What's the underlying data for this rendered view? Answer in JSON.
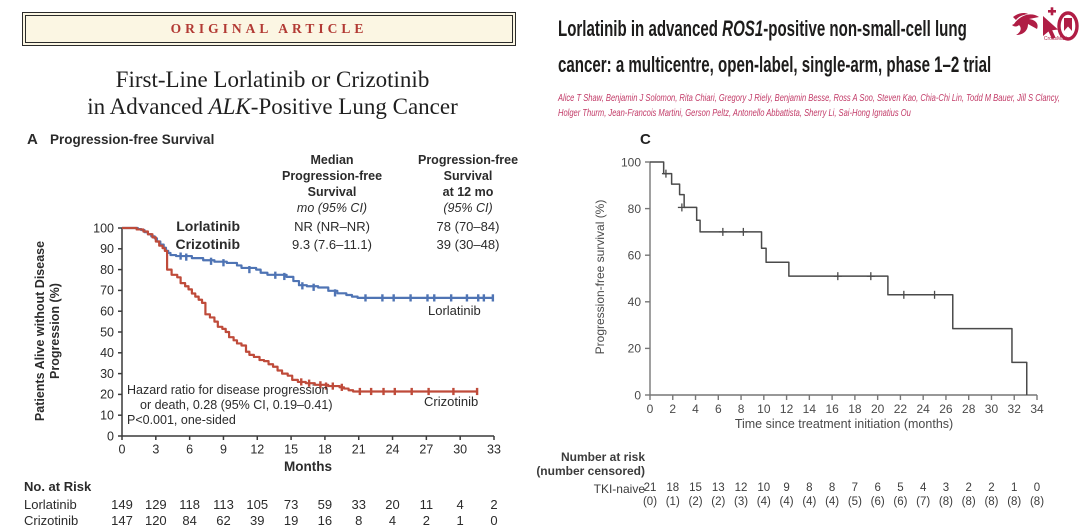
{
  "left_figure": {
    "banner": "ORIGINAL ARTICLE",
    "title": {
      "line1": "First-Line Lorlatinib or Crizotinib",
      "line2_pre": "in Advanced ",
      "line2_italic": "ALK",
      "line2_post": "-Positive Lung Cancer"
    },
    "panel": {
      "label": "A",
      "title": "Progression-free Survival"
    },
    "stats_table": {
      "col1": {
        "h1": "Median",
        "h2": "Progression-free",
        "h3": "Survival",
        "unit": "mo (95% CI)"
      },
      "col2": {
        "h1": "Progression-free",
        "h2": "Survival",
        "h3": "at 12 mo",
        "unit": "(95% CI)"
      },
      "legend": {
        "row1": "Lorlatinib",
        "row2": "Crizotinib"
      },
      "values": {
        "row1_col1": "NR (NR–NR)",
        "row1_col2": "78 (70–84)",
        "row2_col1": "9.3 (7.6–11.1)",
        "row2_col2": "39 (30–48)"
      }
    },
    "ylabel": {
      "line1": "Patients Alive without Disease",
      "line2": "Progression (%)"
    },
    "xlabel": "Months",
    "annotation": {
      "line1": "Hazard ratio for disease progression",
      "line2": "or death, 0.28 (95% CI, 0.19–0.41)",
      "line3": "P<0.001, one-sided"
    },
    "curve_labels": {
      "blue": "Lorlatinib",
      "red": "Crizotinib"
    },
    "risk": {
      "header": "No. at Risk",
      "row1_name": "Lorlatinib",
      "row2_name": "Crizotinib",
      "row1_values": [
        149,
        129,
        118,
        113,
        105,
        73,
        59,
        33,
        20,
        11,
        4,
        2
      ],
      "row2_values": [
        147,
        120,
        84,
        62,
        39,
        19,
        16,
        8,
        4,
        2,
        1,
        0
      ]
    }
  },
  "right_figure": {
    "title": {
      "line1_pre": "Lorlatinib in advanced ",
      "line1_italic": "ROS1",
      "line1_post": "-positive non-small-cell lung",
      "line2": "cancer: a multicentre, open-label, single-arm, phase 1–2 trial"
    },
    "authors_line1": "Alice T Shaw, Benjamin J Solomon, Rita Chiari, Gregory J Riely, Benjamin Besse, Ross A Soo, Steven Kao, Chia-Chi Lin, Todd M Bauer, Jill S Clancy,",
    "authors_line2": "Holger Thurm, Jean-Francois Martini, Gerson Peltz, Antonello Abbattista, Sherry Li, Sai-Hong Ignatius Ou",
    "crossmark_label": "CrossMark",
    "panel_label": "C",
    "ylabel": "Progression-free survival (%)",
    "xlabel": "Time since treatment initiation (months)",
    "risk": {
      "header1": "Number at risk",
      "header2": "(number censored)",
      "row_name": "TKI-naive",
      "at_risk": [
        21,
        18,
        15,
        13,
        12,
        10,
        9,
        8,
        8,
        7,
        6,
        5,
        4,
        3,
        2,
        2,
        1,
        0
      ],
      "censored": [
        "(0)",
        "(1)",
        "(2)",
        "(2)",
        "(3)",
        "(4)",
        "(4)",
        "(4)",
        "(4)",
        "(5)",
        "(6)",
        "(6)",
        "(7)",
        "(8)",
        "(8)",
        "(8)",
        "(8)",
        "(8)"
      ]
    }
  },
  "colors": {
    "lorlatinib_blue": "#4f74b4",
    "crizotinib_red": "#bf4b3a",
    "lancet_curve": "#4a4a4a",
    "lancet_pink": "#c23a67",
    "lancet_crimson": "#b01d45",
    "banner_red": "#b23a34",
    "banner_cream": "#fbf6e3"
  },
  "chart_data": [
    {
      "id": "nejm_pfs",
      "type": "line",
      "subtype": "kaplan-meier",
      "title": "Progression-free Survival",
      "xlabel": "Months",
      "ylabel": "Patients Alive without Disease Progression (%)",
      "xlim": [
        0,
        33
      ],
      "ylim": [
        0,
        100
      ],
      "xticks": [
        0,
        3,
        6,
        9,
        12,
        15,
        18,
        21,
        24,
        27,
        30,
        33
      ],
      "yticks": [
        0,
        10,
        20,
        30,
        40,
        50,
        60,
        70,
        80,
        90,
        100
      ],
      "grid": false,
      "annotations": [
        "Hazard ratio for disease progression or death, 0.28 (95% CI, 0.19–0.41)",
        "P<0.001, one-sided"
      ],
      "series": [
        {
          "name": "Lorlatinib",
          "color": "#4f74b4",
          "median_pfs": "NR (NR–NR)",
          "pfs_12mo": "78 (70–84)",
          "steps": [
            [
              0,
              100
            ],
            [
              1.4,
              99.5
            ],
            [
              1.7,
              99
            ],
            [
              2.0,
              98
            ],
            [
              2.3,
              97
            ],
            [
              2.6,
              96
            ],
            [
              2.9,
              95
            ],
            [
              3.1,
              93.5
            ],
            [
              3.4,
              92
            ],
            [
              3.7,
              90.5
            ],
            [
              3.9,
              89
            ],
            [
              4.1,
              88
            ],
            [
              4.3,
              87
            ],
            [
              4.8,
              86.5
            ],
            [
              6.2,
              85.5
            ],
            [
              7.2,
              84.5
            ],
            [
              8.2,
              83.8
            ],
            [
              9.3,
              83.2
            ],
            [
              10.2,
              82
            ],
            [
              10.6,
              80.8
            ],
            [
              11.9,
              80
            ],
            [
              12.3,
              78.5
            ],
            [
              12.9,
              77.5
            ],
            [
              14.6,
              76.5
            ],
            [
              15.2,
              74.5
            ],
            [
              15.7,
              72.5
            ],
            [
              16.4,
              72
            ],
            [
              17.4,
              71.4
            ],
            [
              18.3,
              69.8
            ],
            [
              19.1,
              68.6
            ],
            [
              19.9,
              67.8
            ],
            [
              20.4,
              67
            ],
            [
              20.9,
              66.4
            ],
            [
              33,
              66.4
            ]
          ],
          "censors": [
            [
              5.2,
              86.5
            ],
            [
              5.7,
              86
            ],
            [
              7.9,
              84
            ],
            [
              9,
              83.3
            ],
            [
              11.3,
              80
            ],
            [
              13.6,
              77.3
            ],
            [
              14.4,
              76.7
            ],
            [
              16,
              72.2
            ],
            [
              17,
              71.5
            ],
            [
              18.9,
              68.8
            ],
            [
              21.6,
              66.4
            ],
            [
              23.1,
              66.4
            ],
            [
              24.1,
              66.4
            ],
            [
              25.6,
              66.4
            ],
            [
              27.1,
              66.4
            ],
            [
              27.7,
              66.4
            ],
            [
              29.2,
              66.4
            ],
            [
              30.6,
              66.4
            ],
            [
              31.6,
              66.4
            ],
            [
              32.1,
              66.4
            ],
            [
              32.9,
              66.4
            ]
          ]
        },
        {
          "name": "Crizotinib",
          "color": "#bf4b3a",
          "median_pfs": "9.3 (7.6–11.1)",
          "pfs_12mo": "39 (30–48)",
          "steps": [
            [
              0,
              100
            ],
            [
              1.3,
              99.3
            ],
            [
              1.9,
              98.3
            ],
            [
              2.3,
              97
            ],
            [
              2.7,
              95.5
            ],
            [
              3.0,
              93.5
            ],
            [
              3.3,
              91.5
            ],
            [
              3.6,
              90.3
            ],
            [
              3.8,
              89
            ],
            [
              4.0,
              80
            ],
            [
              4.4,
              77.5
            ],
            [
              4.9,
              76.3
            ],
            [
              5.2,
              73.5
            ],
            [
              5.6,
              72
            ],
            [
              5.9,
              70.5
            ],
            [
              6.2,
              68.5
            ],
            [
              6.5,
              67
            ],
            [
              6.8,
              65.5
            ],
            [
              7.1,
              64
            ],
            [
              7.4,
              58.5
            ],
            [
              7.8,
              57
            ],
            [
              8.2,
              55
            ],
            [
              8.5,
              52.5
            ],
            [
              8.9,
              51.5
            ],
            [
              9.2,
              50
            ],
            [
              9.5,
              47.5
            ],
            [
              9.9,
              46
            ],
            [
              10.2,
              44.5
            ],
            [
              10.6,
              43.5
            ],
            [
              11.0,
              40.5
            ],
            [
              11.3,
              39
            ],
            [
              11.7,
              38
            ],
            [
              12.2,
              36.5
            ],
            [
              12.6,
              36
            ],
            [
              13.0,
              34.5
            ],
            [
              13.4,
              33.3
            ],
            [
              13.8,
              31.5
            ],
            [
              14.2,
              30
            ],
            [
              14.7,
              29
            ],
            [
              15.1,
              27
            ],
            [
              15.6,
              26
            ],
            [
              16.3,
              25.4
            ],
            [
              17.1,
              24.6
            ],
            [
              18.3,
              24
            ],
            [
              19.3,
              23.4
            ],
            [
              19.7,
              22.8
            ],
            [
              20.1,
              22
            ],
            [
              20.5,
              21.4
            ],
            [
              31.5,
              21.4
            ]
          ],
          "censors": [
            [
              15.9,
              26
            ],
            [
              16.6,
              25.4
            ],
            [
              17.6,
              24.6
            ],
            [
              18.1,
              24
            ],
            [
              18.7,
              24
            ],
            [
              19.5,
              23.4
            ],
            [
              21.1,
              21.4
            ],
            [
              22.1,
              21.4
            ],
            [
              23.2,
              21.4
            ],
            [
              24.2,
              21.4
            ],
            [
              25.7,
              21.4
            ],
            [
              27.2,
              21.4
            ],
            [
              29.4,
              21.4
            ],
            [
              31.5,
              21.4
            ]
          ]
        }
      ],
      "number_at_risk": {
        "Lorlatinib": [
          149,
          129,
          118,
          113,
          105,
          73,
          59,
          33,
          20,
          11,
          4,
          2
        ],
        "Crizotinib": [
          147,
          120,
          84,
          62,
          39,
          19,
          16,
          8,
          4,
          2,
          1,
          0
        ]
      }
    },
    {
      "id": "lancet_pfs",
      "type": "line",
      "subtype": "kaplan-meier",
      "panel_label": "C",
      "xlabel": "Time since treatment initiation (months)",
      "ylabel": "Progression-free survival (%)",
      "xlim": [
        0,
        34
      ],
      "ylim": [
        0,
        100
      ],
      "xticks": [
        0,
        2,
        4,
        6,
        8,
        10,
        12,
        14,
        16,
        18,
        20,
        22,
        24,
        26,
        28,
        30,
        32,
        34
      ],
      "yticks": [
        0,
        20,
        40,
        60,
        80,
        100
      ],
      "grid": false,
      "series": [
        {
          "name": "TKI-naive",
          "color": "#4a4a4a",
          "steps": [
            [
              0,
              100
            ],
            [
              1.2,
              95
            ],
            [
              1.9,
              90.5
            ],
            [
              2.6,
              86
            ],
            [
              3.0,
              80.5
            ],
            [
              4.1,
              75
            ],
            [
              4.4,
              70
            ],
            [
              9.8,
              63
            ],
            [
              10.2,
              57
            ],
            [
              12.2,
              51
            ],
            [
              20.9,
              43
            ],
            [
              26.6,
              28.5
            ],
            [
              31.8,
              14
            ],
            [
              33.1,
              0
            ]
          ],
          "censors": [
            [
              1.4,
              95
            ],
            [
              2.8,
              80.5
            ],
            [
              6.4,
              70
            ],
            [
              8.2,
              70
            ],
            [
              16.5,
              51
            ],
            [
              19.4,
              51
            ],
            [
              22.3,
              43
            ],
            [
              25.0,
              43
            ]
          ]
        }
      ],
      "number_at_risk": {
        "TKI-naive": [
          21,
          18,
          15,
          13,
          12,
          10,
          9,
          8,
          8,
          7,
          6,
          5,
          4,
          3,
          2,
          2,
          1,
          0
        ]
      },
      "number_censored": {
        "TKI-naive": [
          0,
          1,
          2,
          2,
          3,
          4,
          4,
          4,
          4,
          5,
          6,
          6,
          7,
          8,
          8,
          8,
          8,
          8
        ]
      }
    }
  ]
}
